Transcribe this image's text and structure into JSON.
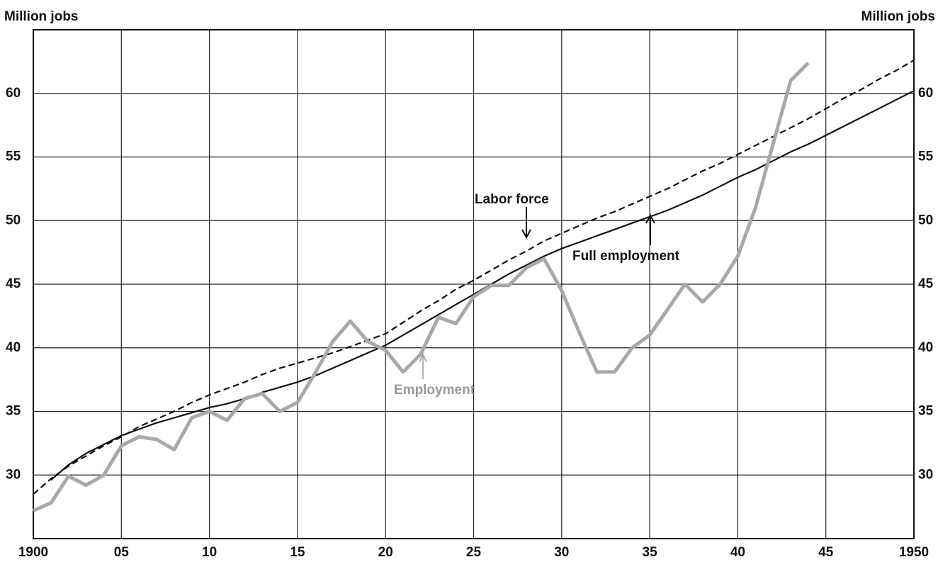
{
  "chart_data": {
    "type": "line",
    "y_label": "Million jobs",
    "annotations": [
      "Labor force",
      "Full employment",
      "Employment"
    ],
    "x": [
      1900,
      1901,
      1902,
      1903,
      1904,
      1905,
      1906,
      1907,
      1908,
      1909,
      1910,
      1911,
      1912,
      1913,
      1914,
      1915,
      1916,
      1917,
      1918,
      1919,
      1920,
      1921,
      1922,
      1923,
      1924,
      1925,
      1926,
      1927,
      1928,
      1929,
      1930,
      1931,
      1932,
      1933,
      1934,
      1935,
      1936,
      1937,
      1938,
      1939,
      1940,
      1941,
      1942,
      1943,
      1944,
      1945,
      1946,
      1947,
      1948,
      1949,
      1950
    ],
    "series": [
      {
        "name": "Labor force",
        "color": "#111111",
        "dash": true,
        "values": [
          28.5,
          29.7,
          30.7,
          31.5,
          32.3,
          33.0,
          33.8,
          34.4,
          35.0,
          35.7,
          36.3,
          36.8,
          37.3,
          37.9,
          38.4,
          38.8,
          39.2,
          39.6,
          40.1,
          40.6,
          41.1,
          42.0,
          42.9,
          43.7,
          44.6,
          45.3,
          46.1,
          46.9,
          47.6,
          48.4,
          49.0,
          49.6,
          50.2,
          50.7,
          51.3,
          51.9,
          52.5,
          53.2,
          53.9,
          54.5,
          55.2,
          55.9,
          56.6,
          57.3,
          58.0,
          58.8,
          59.6,
          60.3,
          61.1,
          61.8,
          62.6
        ]
      },
      {
        "name": "Full employment",
        "color": "#111111",
        "dash": false,
        "values": [
          null,
          29.6,
          30.8,
          31.7,
          32.4,
          33.1,
          33.6,
          34.1,
          34.5,
          34.9,
          35.3,
          35.6,
          36.0,
          36.5,
          36.9,
          37.3,
          37.8,
          38.4,
          39.0,
          39.6,
          40.2,
          41.0,
          41.8,
          42.6,
          43.4,
          44.2,
          45.0,
          45.8,
          46.5,
          47.2,
          47.8,
          48.3,
          48.8,
          49.3,
          49.8,
          50.3,
          50.8,
          51.4,
          52.0,
          52.7,
          53.4,
          54.0,
          54.7,
          55.4,
          56.0,
          56.7,
          57.4,
          58.1,
          58.8,
          59.5,
          60.2
        ]
      },
      {
        "name": "Employment",
        "color": "#a8a8a8",
        "dash": false,
        "values": [
          27.2,
          27.8,
          29.9,
          29.2,
          30.0,
          32.3,
          33.0,
          32.8,
          32.0,
          34.5,
          35.0,
          34.3,
          36.0,
          36.4,
          35.0,
          35.7,
          38.0,
          40.5,
          42.1,
          40.5,
          39.8,
          38.1,
          39.5,
          42.4,
          41.9,
          44.0,
          44.9,
          44.9,
          46.3,
          47.0,
          44.5,
          41.2,
          38.1,
          38.1,
          40.0,
          41.0,
          43.0,
          45.0,
          43.6,
          45.0,
          47.2,
          51.0,
          56.0,
          61.0,
          62.4,
          null,
          null,
          null,
          null,
          null,
          null
        ]
      }
    ],
    "xlim": [
      1900,
      1950
    ],
    "xticks": [
      1900,
      {
        "value": 1905,
        "label": "05"
      },
      {
        "value": 1910,
        "label": "10"
      },
      {
        "value": 1915,
        "label": "15"
      },
      {
        "value": 1920,
        "label": "20"
      },
      {
        "value": 1925,
        "label": "25"
      },
      {
        "value": 1930,
        "label": "30"
      },
      {
        "value": 1935,
        "label": "35"
      },
      {
        "value": 1940,
        "label": "40"
      },
      {
        "value": 1945,
        "label": "45"
      },
      1950
    ],
    "ylim": [
      25,
      65
    ],
    "yticks": [
      30,
      35,
      40,
      45,
      50,
      55,
      60
    ],
    "grid": true
  }
}
